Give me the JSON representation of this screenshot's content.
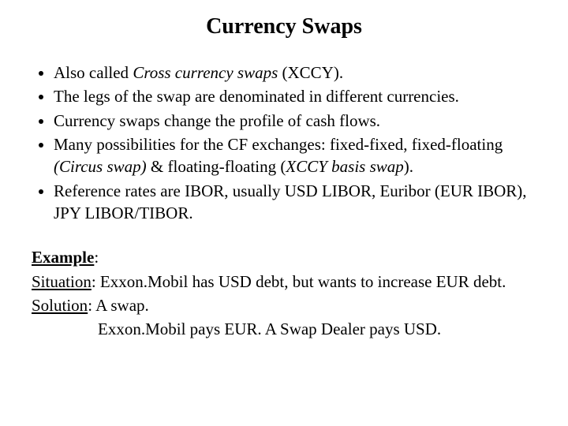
{
  "title": "Currency Swaps",
  "bullets": {
    "b1_pre": "Also called ",
    "b1_it": "Cross currency swaps",
    "b1_post": " (XCCY).",
    "b2": "The legs of the swap are denominated in different currencies.",
    "b3": "Currency swaps change the profile of cash flows.",
    "b4_pre": "Many possibilities for the CF exchanges: fixed-fixed, fixed-floating ",
    "b4_it1": "(Circus swap)",
    "b4_mid": " & floating-floating (",
    "b4_it2": "XCCY basis swap",
    "b4_post": ").",
    "b5": "Reference rates are IBOR, usually USD LIBOR, Euribor (EUR IBOR), JPY LIBOR/TIBOR."
  },
  "example": {
    "label": "Example",
    "colon1": ":",
    "situation_label": "Situation",
    "situation_text": ": Exxon.Mobil has USD debt, but wants to increase EUR debt.",
    "solution_label": "Solution",
    "solution_text": ":  A swap.",
    "solution_line2": "Exxon.Mobil  pays EUR. A Swap Dealer pays USD."
  },
  "colors": {
    "text": "#000000",
    "background": "#ffffff"
  },
  "fonts": {
    "family": "Times New Roman",
    "title_size_pt": 21,
    "body_size_pt": 16
  }
}
